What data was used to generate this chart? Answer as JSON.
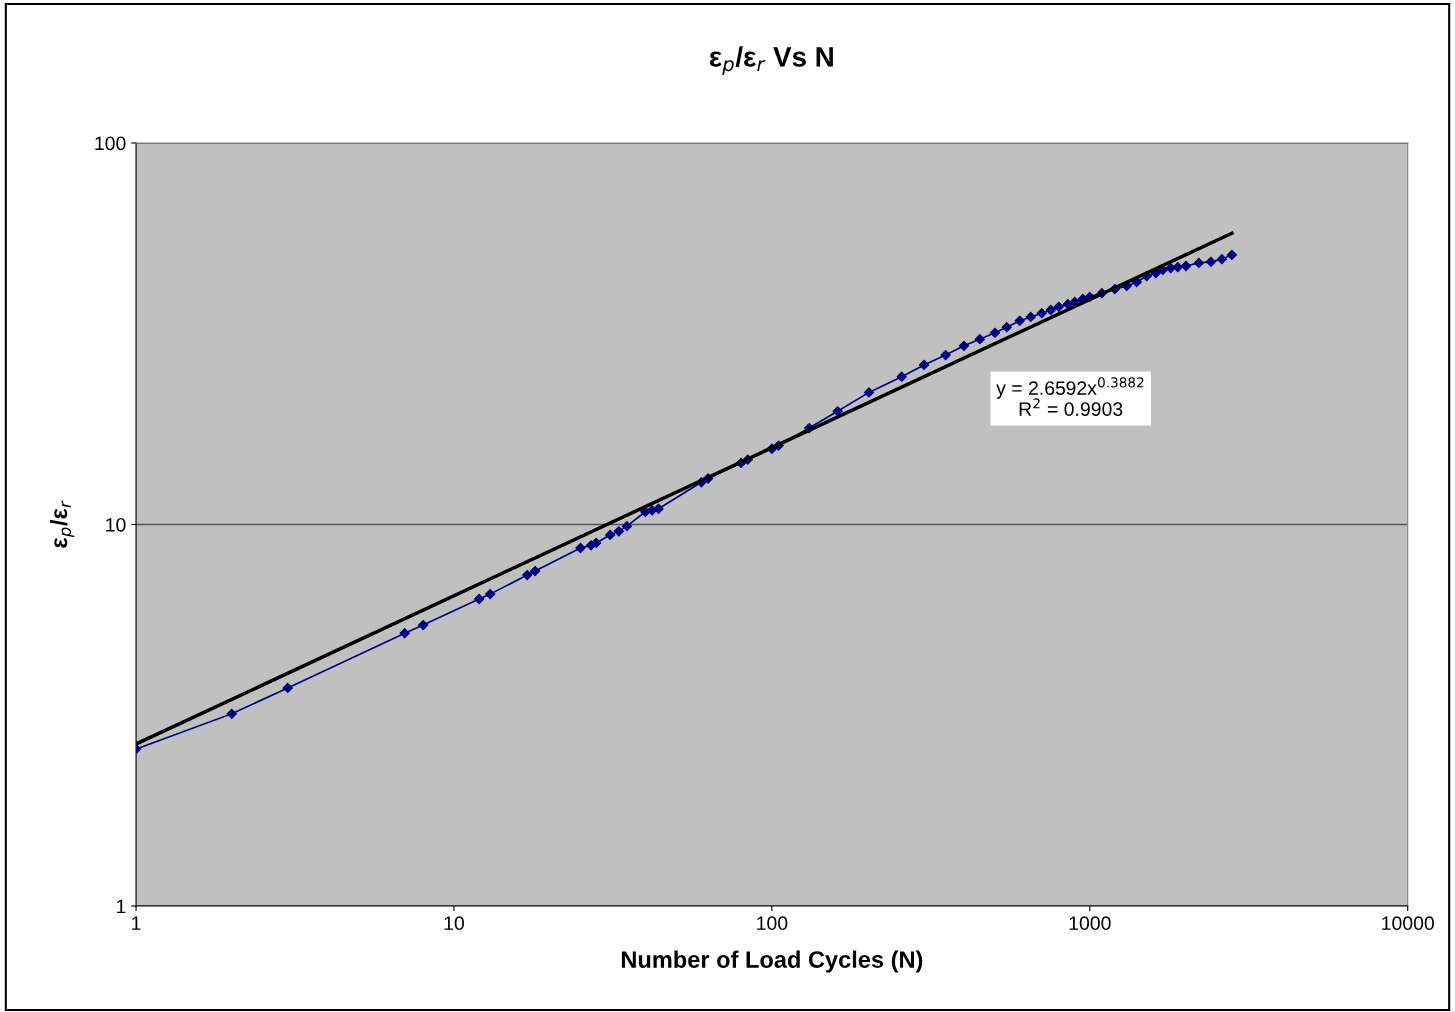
{
  "chart_data": {
    "type": "line",
    "title": "ε$_{p}$/ε$_{r}$ Vs N",
    "xlabel": "Number of Load Cycles (N)",
    "ylabel": "ε$_{p}$/ε$_{r}$",
    "log": "xy",
    "xlim": [
      1,
      10000
    ],
    "ylim": [
      1,
      100
    ],
    "xticks": [
      1,
      10,
      100,
      1000,
      10000
    ],
    "yticks": [
      1,
      10,
      100
    ],
    "grid": "y",
    "marker": "diamond",
    "line_style": "solid",
    "annotations": [
      "y = 2.6592x$^{0.3882}$\nR$^{2}$ = 0.9903"
    ],
    "series": [
      {
        "color": "#000080",
        "x": [
          1,
          2,
          3,
          7,
          8,
          12,
          13,
          17,
          18,
          25,
          27,
          28,
          31,
          33,
          35,
          40,
          42,
          44,
          60,
          63,
          80,
          84,
          100,
          105,
          131,
          161,
          202,
          256,
          301,
          352,
          402,
          451,
          503,
          548,
          602,
          652,
          706,
          754,
          799,
          853,
          897,
          951,
          1000,
          1091,
          1199,
          1307,
          1405,
          1511,
          1613,
          1698,
          1798,
          1892,
          2006,
          2204,
          2404,
          2603,
          2798
        ],
        "values": [
          2.58,
          3.19,
          3.73,
          5.19,
          5.45,
          6.38,
          6.57,
          7.37,
          7.55,
          8.68,
          8.82,
          8.95,
          9.39,
          9.6,
          9.9,
          10.8,
          10.9,
          11.0,
          12.9,
          13.2,
          14.5,
          14.8,
          15.8,
          16.1,
          17.9,
          19.8,
          22.2,
          24.4,
          26.2,
          27.8,
          29.4,
          30.6,
          31.8,
          32.9,
          34.2,
          35.0,
          35.8,
          36.5,
          37.2,
          37.8,
          38.3,
          39.0,
          39.5,
          40.4,
          41.4,
          42.2,
          43.2,
          44.8,
          45.6,
          46.5,
          47.0,
          47.3,
          47.6,
          48.5,
          48.8,
          49.6,
          50.9
        ]
      },
      {
        "type": "line",
        "color": "#000000",
        "marker": "none",
        "x": [
          1,
          2800
        ],
        "values": [
          2.66,
          58
        ]
      }
    ]
  }
}
